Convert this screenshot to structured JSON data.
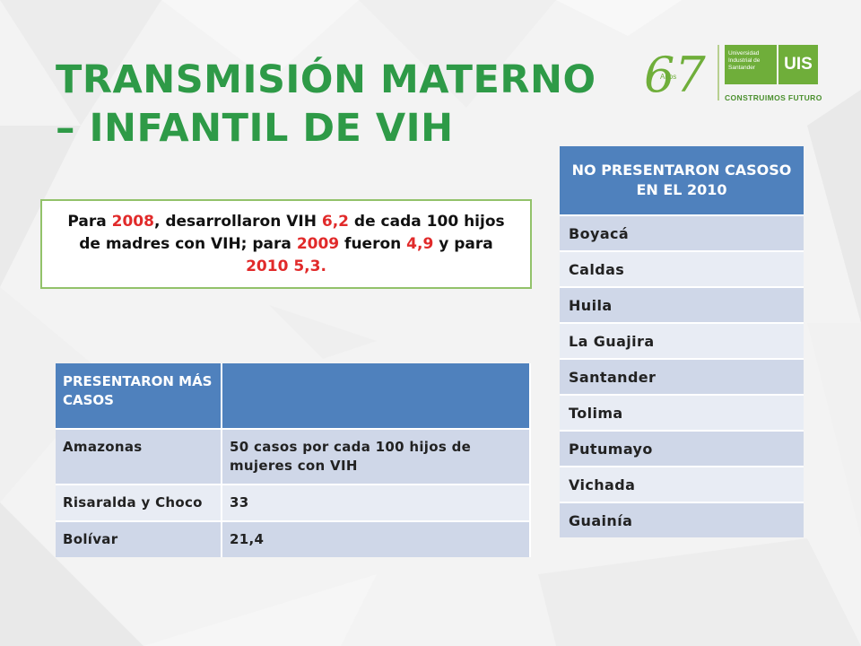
{
  "slide": {
    "title_line1": "TRANSMISIÓN MATERNO",
    "title_line2": "– INFANTIL DE VIH"
  },
  "logo": {
    "anos_number": "67",
    "anos_word": "Años",
    "university_line1": "Universidad",
    "university_line2": "Industrial de",
    "university_line3": "Santander",
    "mark": "UIS",
    "slogan": "CONSTRUIMOS FUTURO"
  },
  "callout": {
    "t1": "Para ",
    "y2008": "2008",
    "t2": ", desarrollaron VIH ",
    "v62": "6,2",
    "t3": " de cada 100 hijos de madres con VIH; para ",
    "y2009": "2009",
    "t4": " fueron ",
    "v49": "4,9",
    "t5": " y para ",
    "y2010": "2010",
    "v53": " 5,3."
  },
  "no_cases_table": {
    "header": "NO PRESENTARON CASOSO EN EL 2010",
    "rows": [
      "Boyacá",
      "Caldas",
      "Huila",
      "La Guajira",
      "Santander",
      "Tolima",
      "Putumayo",
      "Vichada",
      "Guainía"
    ]
  },
  "more_cases_table": {
    "header_col1": "PRESENTARON MÁS CASOS",
    "header_col2": "",
    "rows": [
      {
        "place": "Amazonas",
        "value": "50 casos por cada 100 hijos de mujeres con VIH"
      },
      {
        "place": "Risaralda y Choco",
        "value": "33"
      },
      {
        "place": "Bolívar",
        "value": "21,4"
      }
    ]
  },
  "colors": {
    "title_green": "#2e9a47",
    "highlight_red": "#e12a2a",
    "table_header_blue": "#4f81bd",
    "callout_border": "#92c26a"
  }
}
